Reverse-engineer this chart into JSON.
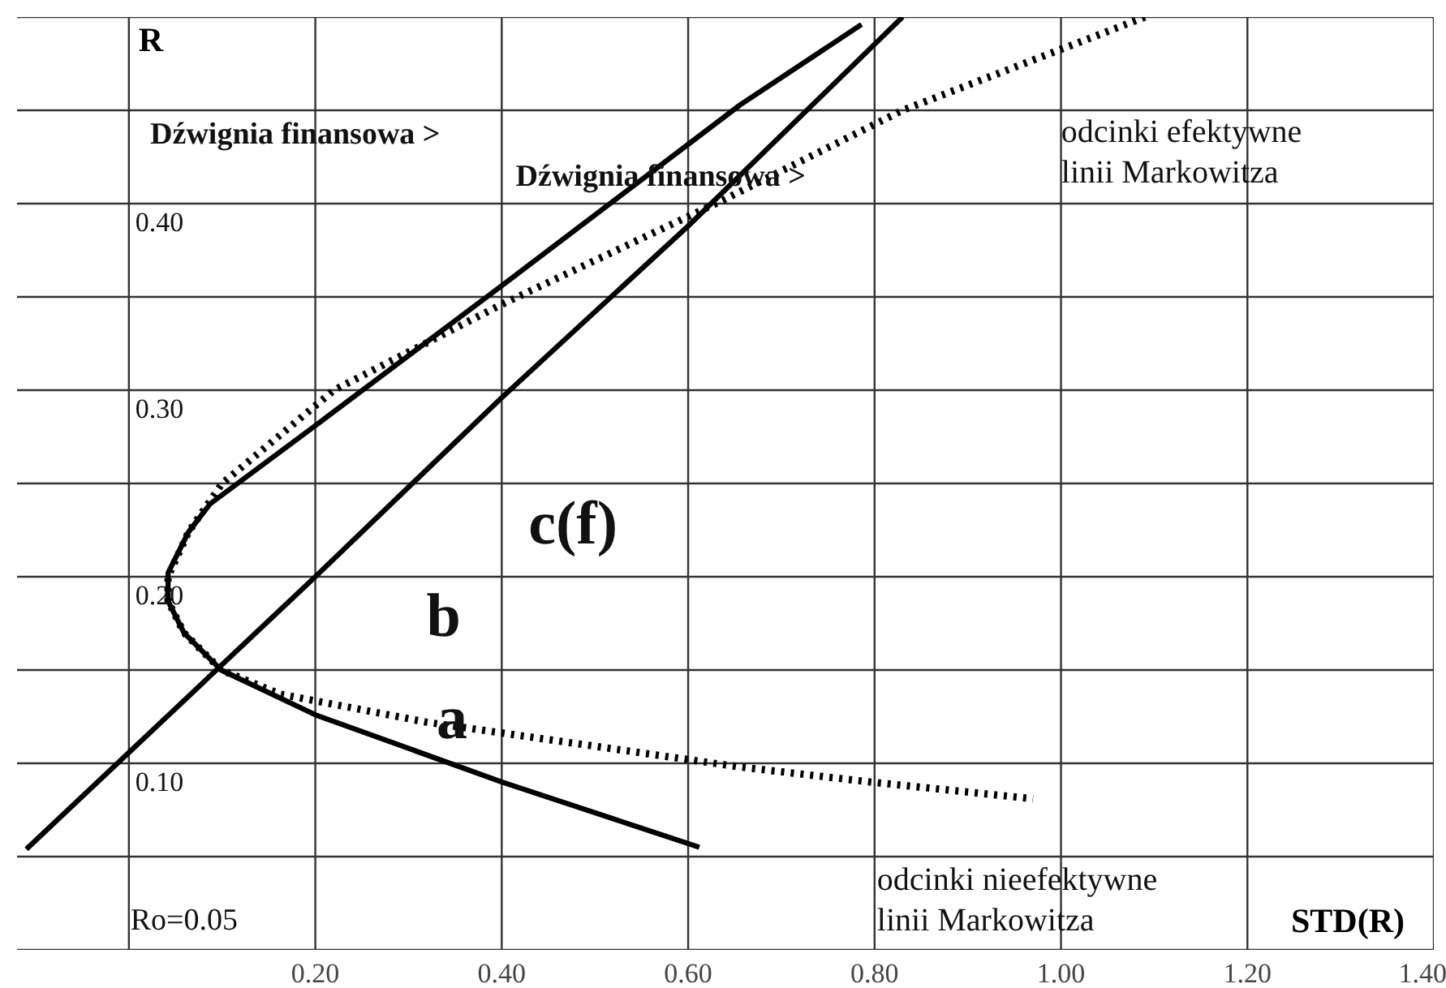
{
  "chart_data": {
    "type": "line",
    "xlabel": "STD(R)",
    "ylabel": "R",
    "xlim": [
      -0.12,
      1.4
    ],
    "ylim": [
      0,
      0.5
    ],
    "xticks": [
      {
        "value": 0,
        "label": null
      },
      {
        "value": 0.2,
        "label": "0.20"
      },
      {
        "value": 0.4,
        "label": "0.40"
      },
      {
        "value": 0.6,
        "label": "0.60"
      },
      {
        "value": 0.8,
        "label": "0.80"
      },
      {
        "value": 1.0,
        "label": "1.00"
      },
      {
        "value": 1.2,
        "label": "1.20"
      },
      {
        "value": 1.4,
        "label": "1.40"
      }
    ],
    "yticks": [
      {
        "value": 0,
        "label": null
      },
      {
        "value": 0.05,
        "label": null
      },
      {
        "value": 0.1,
        "label": "0.10"
      },
      {
        "value": 0.15,
        "label": null
      },
      {
        "value": 0.2,
        "label": "0.20"
      },
      {
        "value": 0.25,
        "label": null
      },
      {
        "value": 0.3,
        "label": "0.30"
      },
      {
        "value": 0.35,
        "label": null
      },
      {
        "value": 0.4,
        "label": "0.40"
      },
      {
        "value": 0.45,
        "label": null
      },
      {
        "value": 0.5,
        "label": null
      }
    ],
    "grid": true,
    "marker": "none",
    "series": [
      {
        "color": "#000000",
        "line_style": "solid",
        "x": [
          0.786,
          0.656,
          0.4,
          0.2,
          0.087,
          0.064,
          0.042,
          0.042,
          0.059,
          0.099,
          0.2,
          0.4,
          0.612
        ],
        "values": [
          0.496,
          0.453,
          0.356,
          0.281,
          0.239,
          0.224,
          0.202,
          0.187,
          0.17,
          0.15,
          0.126,
          0.09,
          0.055
        ]
      },
      {
        "color": "#000000",
        "line_style": "solid",
        "x": [
          -0.11,
          0.2,
          0.4,
          0.6,
          0.83
        ],
        "values": [
          0.054,
          0.2,
          0.296,
          0.388,
          0.5
        ]
      },
      {
        "color": "#000000",
        "line_style": "dotted",
        "x": [
          1.09,
          0.83,
          0.638,
          0.4,
          0.22,
          0.1,
          0.064,
          0.042,
          0.042,
          0.059,
          0.099,
          0.163,
          0.32,
          0.656,
          0.795,
          0.97
        ],
        "values": [
          0.5,
          0.45,
          0.402,
          0.346,
          0.3,
          0.25,
          0.224,
          0.2,
          0.187,
          0.17,
          0.15,
          0.137,
          0.122,
          0.098,
          0.09,
          0.081
        ]
      }
    ],
    "annotations": [
      "Dźwignia finansowa >",
      "Dźwignia finansowa >",
      "odcinki efektywne\nlinii Markowitza",
      "odcinki nieefektywne\nlinii Markowitza",
      "Ro=0.05",
      {
        "text": "a",
        "x": 0.33,
        "y": 0.124
      },
      "b",
      "c(f)"
    ]
  }
}
